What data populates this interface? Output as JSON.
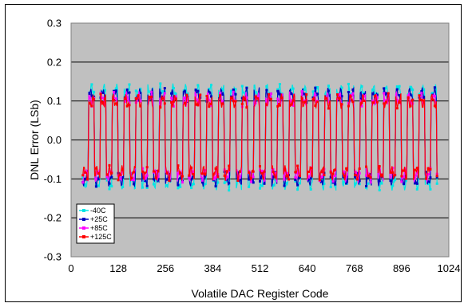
{
  "chart_data": {
    "type": "scatter",
    "title": "",
    "xlabel": "Volatile DAC Register Code",
    "ylabel": "DNL Error (LSb)",
    "xlim": [
      0,
      1024
    ],
    "ylim": [
      -0.3,
      0.3
    ],
    "xticks": [
      "0",
      "128",
      "256",
      "384",
      "512",
      "640",
      "768",
      "896",
      "1024"
    ],
    "yticks": [
      "0.3",
      "0.2",
      "0.1",
      "0.0",
      "-0.1",
      "-0.2",
      "-0.3"
    ],
    "grid": "horizontal",
    "plot_background": "#c0c0c0",
    "legend_position": "bottom-left inside plot",
    "code_range": [
      32,
      992
    ],
    "period_codes": 32,
    "series": [
      {
        "name": "-40C",
        "color": "#00e5e5",
        "high": 0.125,
        "low": -0.11
      },
      {
        "name": "+25C",
        "color": "#0000c0",
        "high": 0.115,
        "low": -0.1
      },
      {
        "name": "+85C",
        "color": "#ff00ff",
        "high": 0.105,
        "low": -0.09
      },
      {
        "name": "+125C",
        "color": "#ff0000",
        "high": 0.1,
        "low": -0.085
      }
    ]
  }
}
